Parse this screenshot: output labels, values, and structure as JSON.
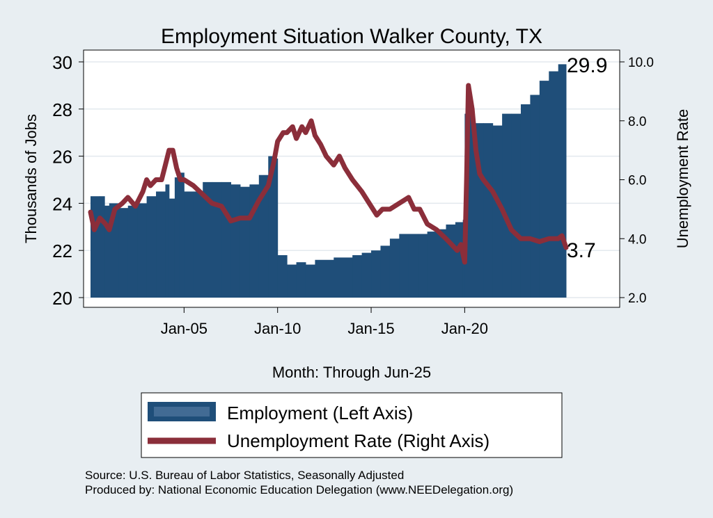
{
  "chart_data": {
    "type": "bar+line",
    "title": "Employment Situation Walker  County, TX",
    "xlabel": "Month: Through Jun-25",
    "ylabel_left": "Thousands of Jobs",
    "ylabel_right": "Unemployment Rate",
    "x_tick_labels": [
      "Jan-05",
      "Jan-10",
      "Jan-15",
      "Jan-20"
    ],
    "x_tick_values": [
      2005.0,
      2010.0,
      2015.0,
      2020.0
    ],
    "xlim": [
      2000.0,
      2025.42
    ],
    "ylim_left": [
      20,
      30
    ],
    "yticks_left": [
      "20",
      "22",
      "24",
      "26",
      "28",
      "30"
    ],
    "ylim_right": [
      2.0,
      10.0
    ],
    "yticks_right": [
      "2.0",
      "4.0",
      "6.0",
      "8.0",
      "10.0"
    ],
    "grid": true,
    "legend_position": "bottom",
    "end_labels": {
      "employment": "29.9",
      "unemployment": "3.7"
    },
    "colors": {
      "employment": "#1f4e79",
      "unemployment": "#8b2e3a",
      "background": "#e8eef2",
      "plot_bg": "#ffffff",
      "title": "#1a2f5a"
    },
    "series": [
      {
        "name": "Employment (Left Axis)",
        "axis": "left",
        "type": "bar",
        "points": [
          [
            2000.0,
            24.3
          ],
          [
            2000.5,
            24.3
          ],
          [
            2000.75,
            23.9
          ],
          [
            2001.0,
            24.0
          ],
          [
            2001.5,
            23.8
          ],
          [
            2002.0,
            23.9
          ],
          [
            2002.5,
            24.0
          ],
          [
            2003.0,
            24.3
          ],
          [
            2003.5,
            24.5
          ],
          [
            2004.0,
            24.8
          ],
          [
            2004.2,
            24.2
          ],
          [
            2004.5,
            25.1
          ],
          [
            2004.75,
            25.3
          ],
          [
            2005.0,
            24.5
          ],
          [
            2005.5,
            24.5
          ],
          [
            2006.0,
            24.9
          ],
          [
            2006.5,
            24.9
          ],
          [
            2007.0,
            24.9
          ],
          [
            2007.5,
            24.8
          ],
          [
            2008.0,
            24.7
          ],
          [
            2008.5,
            24.8
          ],
          [
            2009.0,
            25.2
          ],
          [
            2009.5,
            26.0
          ],
          [
            2009.75,
            25.9
          ],
          [
            2010.0,
            21.8
          ],
          [
            2010.5,
            21.4
          ],
          [
            2011.0,
            21.5
          ],
          [
            2011.5,
            21.4
          ],
          [
            2012.0,
            21.6
          ],
          [
            2013.0,
            21.7
          ],
          [
            2014.0,
            21.8
          ],
          [
            2014.5,
            21.9
          ],
          [
            2015.0,
            22.0
          ],
          [
            2015.5,
            22.2
          ],
          [
            2016.0,
            22.5
          ],
          [
            2016.5,
            22.7
          ],
          [
            2017.0,
            22.7
          ],
          [
            2017.5,
            22.7
          ],
          [
            2018.0,
            22.8
          ],
          [
            2018.5,
            22.9
          ],
          [
            2019.0,
            23.1
          ],
          [
            2019.5,
            23.2
          ],
          [
            2019.9,
            23.3
          ],
          [
            2020.0,
            27.8
          ],
          [
            2020.5,
            27.4
          ],
          [
            2021.0,
            27.4
          ],
          [
            2021.5,
            27.3
          ],
          [
            2022.0,
            27.8
          ],
          [
            2022.5,
            27.8
          ],
          [
            2023.0,
            28.2
          ],
          [
            2023.5,
            28.6
          ],
          [
            2024.0,
            29.2
          ],
          [
            2024.5,
            29.6
          ],
          [
            2025.0,
            29.9
          ],
          [
            2025.42,
            29.9
          ]
        ]
      },
      {
        "name": "Unemployment Rate (Right Axis)",
        "axis": "right",
        "type": "line",
        "points": [
          [
            2000.0,
            4.9
          ],
          [
            2000.2,
            4.3
          ],
          [
            2000.5,
            4.7
          ],
          [
            2000.8,
            4.5
          ],
          [
            2001.0,
            4.3
          ],
          [
            2001.3,
            5.0
          ],
          [
            2001.7,
            5.2
          ],
          [
            2002.0,
            5.4
          ],
          [
            2002.4,
            5.1
          ],
          [
            2002.8,
            5.6
          ],
          [
            2003.0,
            6.0
          ],
          [
            2003.2,
            5.8
          ],
          [
            2003.5,
            6.0
          ],
          [
            2003.8,
            6.0
          ],
          [
            2004.0,
            6.5
          ],
          [
            2004.2,
            7.0
          ],
          [
            2004.4,
            7.0
          ],
          [
            2004.6,
            6.4
          ],
          [
            2004.8,
            6.0
          ],
          [
            2005.0,
            6.0
          ],
          [
            2005.5,
            5.8
          ],
          [
            2006.0,
            5.5
          ],
          [
            2006.5,
            5.2
          ],
          [
            2007.0,
            5.1
          ],
          [
            2007.5,
            4.6
          ],
          [
            2008.0,
            4.7
          ],
          [
            2008.5,
            4.7
          ],
          [
            2009.0,
            5.3
          ],
          [
            2009.5,
            5.8
          ],
          [
            2009.8,
            6.6
          ],
          [
            2010.0,
            7.3
          ],
          [
            2010.3,
            7.6
          ],
          [
            2010.5,
            7.6
          ],
          [
            2010.8,
            7.8
          ],
          [
            2011.0,
            7.4
          ],
          [
            2011.3,
            7.8
          ],
          [
            2011.5,
            7.6
          ],
          [
            2011.8,
            8.0
          ],
          [
            2012.0,
            7.5
          ],
          [
            2012.3,
            7.2
          ],
          [
            2012.6,
            6.8
          ],
          [
            2013.0,
            6.5
          ],
          [
            2013.3,
            6.8
          ],
          [
            2013.6,
            6.4
          ],
          [
            2014.0,
            6.0
          ],
          [
            2014.5,
            5.6
          ],
          [
            2015.0,
            5.1
          ],
          [
            2015.3,
            4.8
          ],
          [
            2015.6,
            5.0
          ],
          [
            2016.0,
            5.0
          ],
          [
            2016.5,
            5.2
          ],
          [
            2017.0,
            5.4
          ],
          [
            2017.3,
            5.0
          ],
          [
            2017.6,
            5.0
          ],
          [
            2018.0,
            4.5
          ],
          [
            2018.5,
            4.3
          ],
          [
            2019.0,
            4.0
          ],
          [
            2019.3,
            3.8
          ],
          [
            2019.6,
            3.6
          ],
          [
            2019.8,
            3.8
          ],
          [
            2020.0,
            3.2
          ],
          [
            2020.1,
            6.0
          ],
          [
            2020.2,
            9.2
          ],
          [
            2020.4,
            8.4
          ],
          [
            2020.6,
            7.0
          ],
          [
            2020.8,
            6.2
          ],
          [
            2021.0,
            6.0
          ],
          [
            2021.5,
            5.6
          ],
          [
            2022.0,
            5.0
          ],
          [
            2022.5,
            4.3
          ],
          [
            2023.0,
            4.0
          ],
          [
            2023.5,
            4.0
          ],
          [
            2024.0,
            3.9
          ],
          [
            2024.5,
            4.0
          ],
          [
            2025.0,
            4.0
          ],
          [
            2025.2,
            4.1
          ],
          [
            2025.42,
            3.7
          ]
        ]
      }
    ]
  },
  "footer": {
    "source": "Source: U.S. Bureau of Labor Statistics, Seasonally Adjusted",
    "produced_by": "Produced by: National Economic Education Delegation (www.NEEDelegation.org)"
  }
}
